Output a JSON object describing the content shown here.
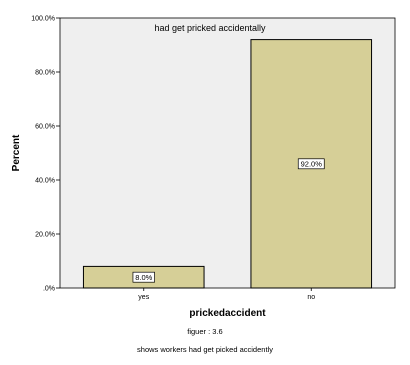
{
  "chart_data": {
    "type": "bar",
    "title": "had get pricked accidentally",
    "xlabel": "prickedaccident",
    "ylabel": "Percent",
    "categories": [
      "yes",
      "no"
    ],
    "values": [
      8.0,
      92.0
    ],
    "data_labels": [
      "8.0%",
      "92.0%"
    ],
    "ylim": [
      0,
      100
    ],
    "yticks": [
      0,
      20,
      40,
      60,
      80,
      100
    ],
    "ytick_labels": [
      ".0%",
      "20.0%",
      "40.0%",
      "60.0%",
      "80.0%",
      "100.0%"
    ],
    "grid": false,
    "legend": "none",
    "colors": {
      "bar_fill": "#d6cf97",
      "bar_stroke": "#000000",
      "plot_background": "#efefef"
    }
  },
  "caption": {
    "figure_number": "figuer : 3.6",
    "description": "shows workers had get picked accidently"
  }
}
